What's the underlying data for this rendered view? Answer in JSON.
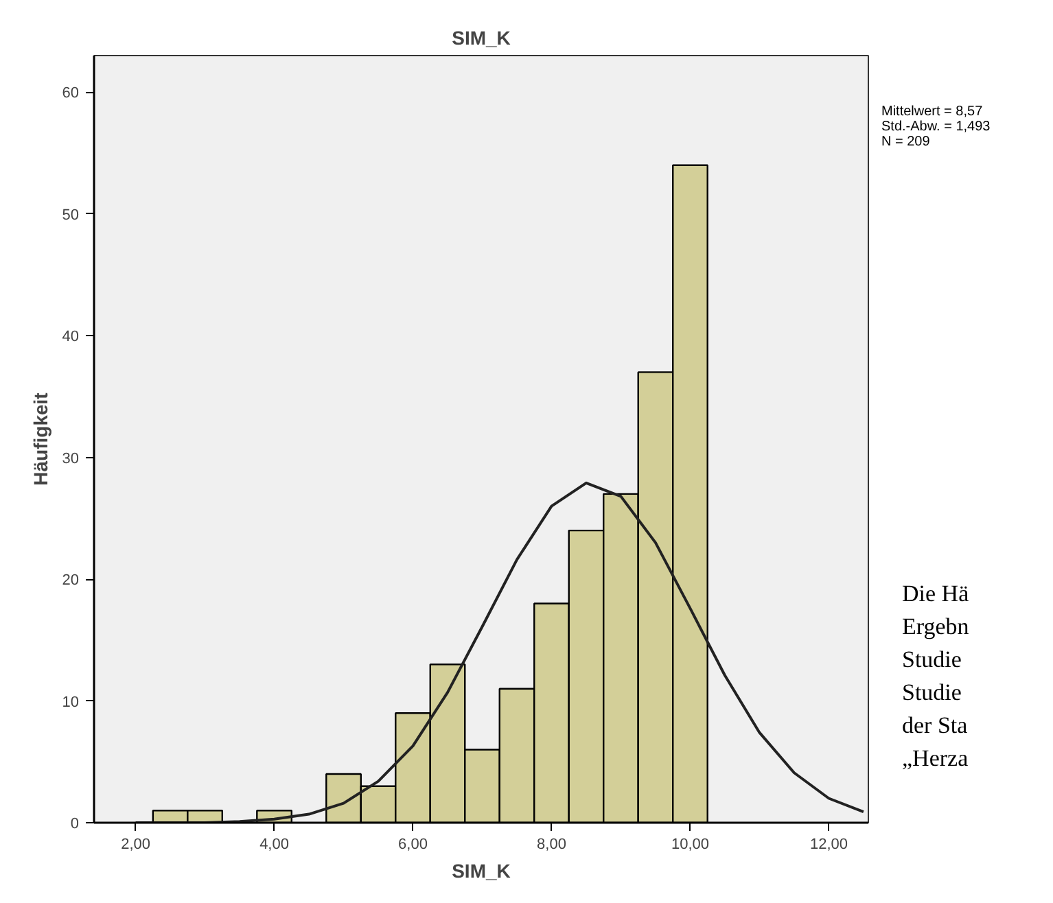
{
  "chart_data": {
    "type": "histogram",
    "title": "SIM_K",
    "xlabel": "SIM_K",
    "ylabel": "Häufigkeit",
    "bins": [
      2.25,
      2.75,
      3.25,
      3.75,
      4.25,
      4.75,
      5.25,
      5.75,
      6.25,
      6.75,
      7.25,
      7.75,
      8.25,
      8.75,
      9.25,
      9.75,
      10.25
    ],
    "values": [
      1,
      1,
      0,
      1,
      0,
      4,
      3,
      9,
      13,
      6,
      11,
      18,
      24,
      27,
      37,
      54
    ],
    "color": "#d3cf98",
    "series": [
      {
        "type": "line",
        "color": "#222222",
        "x": [
          2.0,
          3.0,
          3.5,
          4.0,
          4.5,
          5.0,
          5.5,
          6.0,
          6.5,
          7.0,
          7.5,
          8.0,
          8.5,
          9.0,
          9.5,
          10.0,
          10.5,
          11.0,
          11.5,
          12.0,
          12.5
        ],
        "values": [
          0.0,
          0.0,
          0.1,
          0.3,
          0.7,
          1.6,
          3.4,
          6.3,
          10.7,
          16.1,
          21.6,
          26.0,
          27.9,
          26.8,
          23.0,
          17.6,
          12.1,
          7.4,
          4.1,
          2.0,
          0.9
        ]
      }
    ],
    "xlim": [
      1.4,
      12.57
    ],
    "ylim": [
      0,
      63
    ],
    "xticks": [
      {
        "value": 2,
        "label": "2,00"
      },
      {
        "value": 4,
        "label": "4,00"
      },
      {
        "value": 6,
        "label": "6,00"
      },
      {
        "value": 8,
        "label": "8,00"
      },
      {
        "value": 10,
        "label": "10,00"
      },
      {
        "value": 12,
        "label": "12,00"
      }
    ],
    "yticks": [
      0,
      10,
      20,
      30,
      40,
      50,
      60
    ],
    "grid": false,
    "annotations": [
      "Mittelwert = 8,57",
      "Std.-Abw. = 1,493",
      "N = 209",
      "Die Hä",
      "Ergebn",
      "Studie",
      "Studie",
      "der Sta",
      "„Herza"
    ]
  }
}
